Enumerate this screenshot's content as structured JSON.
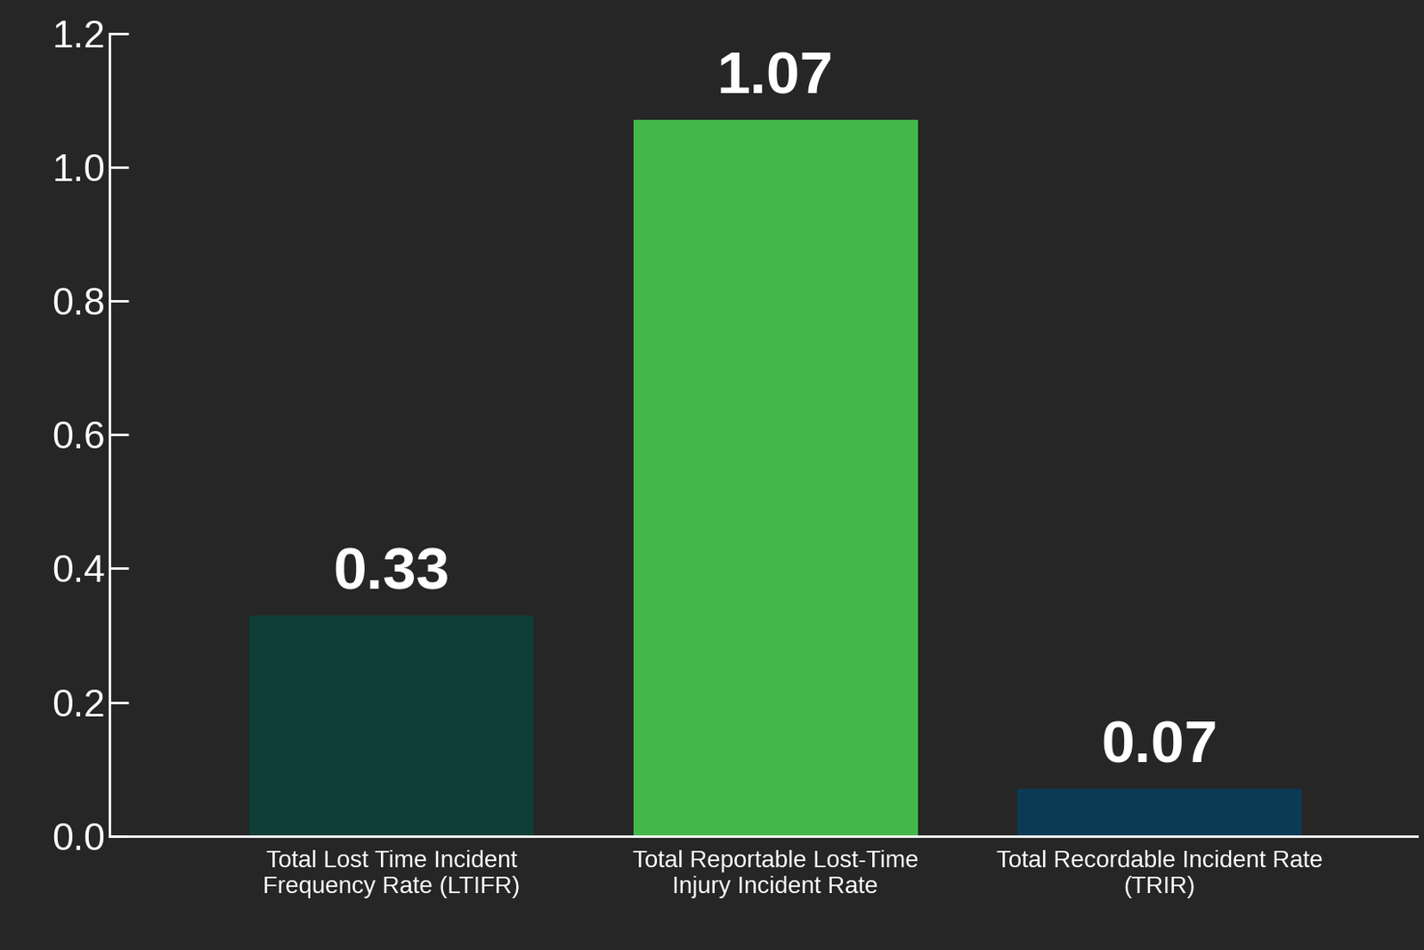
{
  "chart_data": {
    "type": "bar",
    "categories": [
      "Total Lost Time Incident Frequency Rate (LTIFR)",
      "Total Reportable Lost-Time Injury Incident Rate",
      "Total Recordable Incident Rate (TRIR)"
    ],
    "values": [
      0.33,
      1.07,
      0.07
    ],
    "colors": [
      "#0f3d38",
      "#44b74a",
      "#0b3a55"
    ],
    "ylim": [
      0.0,
      1.2
    ],
    "yticks": [
      {
        "value": 0.0,
        "label": "0.0"
      },
      {
        "value": 0.2,
        "label": "0.2"
      },
      {
        "value": 0.4,
        "label": "0.4"
      },
      {
        "value": 0.6,
        "label": "0.6"
      },
      {
        "value": 0.8,
        "label": "0.8"
      },
      {
        "value": 1.0,
        "label": "1.0"
      },
      {
        "value": 1.2,
        "label": "1.2"
      }
    ],
    "data_labels": true,
    "grid": false
  }
}
